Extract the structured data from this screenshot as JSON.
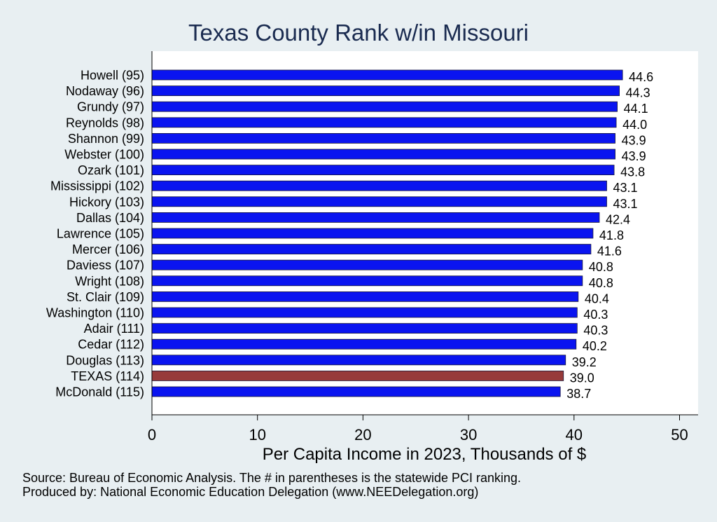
{
  "chart_data": {
    "type": "bar",
    "orientation": "horizontal",
    "title": "Texas County Rank w/in Missouri",
    "xlabel": "Per Capita Income in 2023, Thousands of $",
    "ylabel": "",
    "xlim": [
      0,
      52
    ],
    "xticks": [
      0,
      10,
      20,
      30,
      40,
      50
    ],
    "grid": false,
    "categories": [
      "Howell (95)",
      "Nodaway (96)",
      "Grundy (97)",
      "Reynolds (98)",
      "Shannon (99)",
      "Webster (100)",
      "Ozark (101)",
      "Mississippi (102)",
      "Hickory (103)",
      "Dallas (104)",
      "Lawrence (105)",
      "Mercer (106)",
      "Daviess (107)",
      "Wright (108)",
      "St. Clair (109)",
      "Washington (110)",
      "Adair (111)",
      "Cedar (112)",
      "Douglas (113)",
      "TEXAS (114)",
      "McDonald (115)"
    ],
    "values": [
      44.6,
      44.3,
      44.1,
      44.0,
      43.9,
      43.9,
      43.8,
      43.1,
      43.1,
      42.4,
      41.8,
      41.6,
      40.8,
      40.8,
      40.4,
      40.3,
      40.3,
      40.2,
      39.2,
      39.0,
      38.7
    ],
    "value_labels": [
      "44.6",
      "44.3",
      "44.1",
      "44.0",
      "43.9",
      "43.9",
      "43.8",
      "43.1",
      "43.1",
      "42.4",
      "41.8",
      "41.6",
      "40.8",
      "40.8",
      "40.4",
      "40.3",
      "40.3",
      "40.2",
      "39.2",
      "39.0",
      "38.7"
    ],
    "highlight_category": "TEXAS (114)",
    "colors": {
      "bar": "#0a14f0",
      "highlight": "#973a3a",
      "title": "#1a2b50",
      "background": "#e8eff2",
      "plot_background": "#ffffff"
    }
  },
  "notes": {
    "source": "Source: Bureau of Economic Analysis. The # in parentheses is the statewide PCI ranking.",
    "produced_by": "Produced by: National Economic Education Delegation (www.NEEDelegation.org)"
  }
}
